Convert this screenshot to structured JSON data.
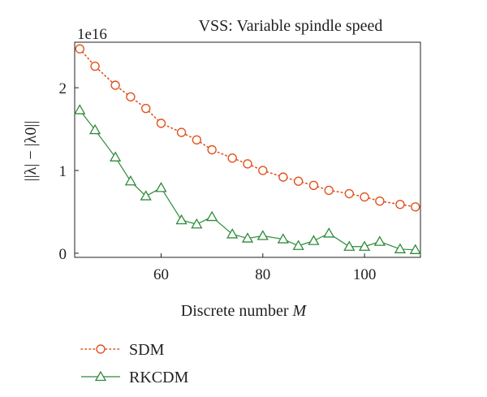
{
  "chart_data": {
    "type": "line",
    "title": "VSS: Variable spindle speed",
    "xlabel": "Discrete number",
    "xlabel_symbol": "M",
    "ylabel": "||λ| − |λ0||",
    "y_multiplier": "1e16",
    "xlim": [
      43,
      111
    ],
    "ylim": [
      -0.05,
      2.55
    ],
    "x_ticks": [
      60,
      80,
      100
    ],
    "y_ticks": [
      0,
      1,
      2
    ],
    "legend_position": "bottom-left",
    "series": [
      {
        "name": "SDM",
        "color": "#e0541f",
        "marker": "circle",
        "line": "dotted",
        "x": [
          44,
          47,
          51,
          54,
          57,
          60,
          64,
          67,
          70,
          74,
          77,
          80,
          84,
          87,
          90,
          93,
          97,
          100,
          103,
          107,
          110
        ],
        "y": [
          2.47,
          2.26,
          2.03,
          1.89,
          1.75,
          1.57,
          1.46,
          1.37,
          1.25,
          1.15,
          1.08,
          1.0,
          0.92,
          0.87,
          0.82,
          0.76,
          0.72,
          0.68,
          0.63,
          0.59,
          0.56
        ]
      },
      {
        "name": "RKCDM",
        "color": "#2e8b3a",
        "marker": "triangle",
        "line": "solid",
        "x": [
          44,
          47,
          51,
          54,
          57,
          60,
          64,
          67,
          70,
          74,
          77,
          80,
          84,
          87,
          90,
          93,
          97,
          100,
          103,
          107,
          110
        ],
        "y": [
          1.73,
          1.49,
          1.16,
          0.87,
          0.69,
          0.79,
          0.4,
          0.35,
          0.44,
          0.23,
          0.18,
          0.21,
          0.17,
          0.09,
          0.15,
          0.24,
          0.08,
          0.08,
          0.14,
          0.05,
          0.04
        ]
      }
    ]
  }
}
